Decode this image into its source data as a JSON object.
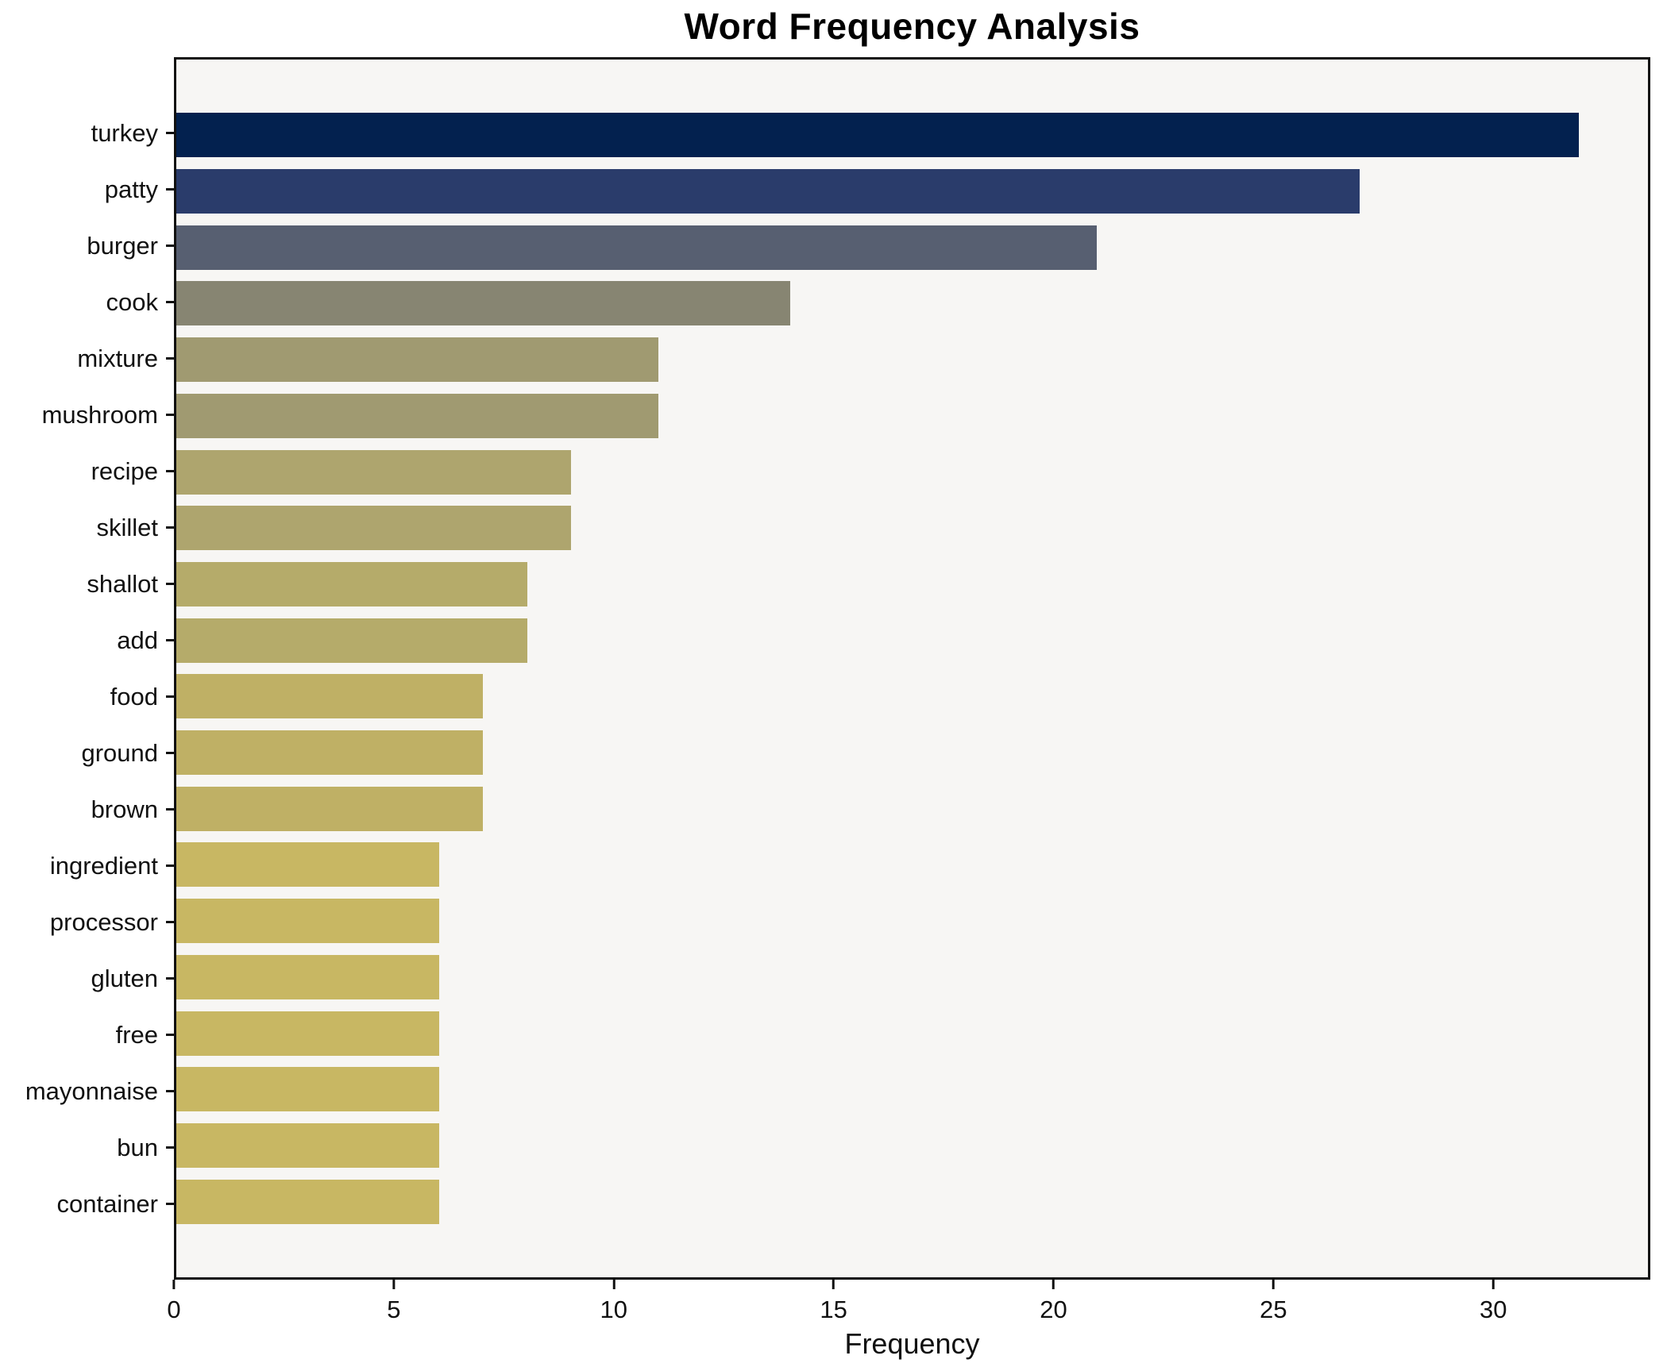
{
  "chart_data": {
    "type": "bar",
    "orientation": "horizontal",
    "title": "Word Frequency Analysis",
    "xlabel": "Frequency",
    "ylabel": "",
    "categories": [
      "turkey",
      "patty",
      "burger",
      "cook",
      "mixture",
      "mushroom",
      "recipe",
      "skillet",
      "shallot",
      "add",
      "food",
      "ground",
      "brown",
      "ingredient",
      "processor",
      "gluten",
      "free",
      "mayonnaise",
      "bun",
      "container"
    ],
    "values": [
      32,
      27,
      21,
      14,
      11,
      11,
      9,
      9,
      8,
      8,
      7,
      7,
      7,
      6,
      6,
      6,
      6,
      6,
      6,
      6
    ],
    "bar_colors": [
      "#03214f",
      "#2a3c6b",
      "#575f71",
      "#878572",
      "#a09a71",
      "#a09a71",
      "#aea56e",
      "#aea56e",
      "#b5ab6a",
      "#b5ab6a",
      "#bfb065",
      "#bfb065",
      "#bfb065",
      "#c8b763",
      "#c8b763",
      "#c8b763",
      "#c8b763",
      "#c8b763",
      "#c8b763",
      "#c8b763"
    ],
    "xlim": [
      0,
      33.57
    ],
    "xticks": [
      0,
      5,
      10,
      15,
      20,
      25,
      30
    ],
    "grid": "off",
    "legend": "none",
    "colors": {
      "plot_background": "#f7f6f4",
      "figure_background": "#ffffff",
      "spine": "#111111",
      "text": "#111111",
      "title_text": "#000000"
    }
  }
}
